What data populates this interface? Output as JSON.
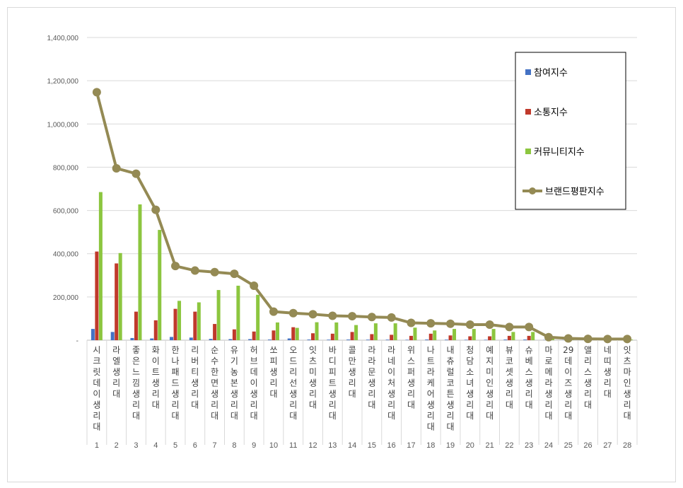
{
  "chart_data": {
    "type": "bar",
    "ylim": [
      0,
      1400000
    ],
    "y_ticks": [
      "-",
      "200,000",
      "400,000",
      "600,000",
      "800,000",
      "1,000,000",
      "1,200,000",
      "1,400,000"
    ],
    "categories": [
      "시크릿데이 생리대",
      "라엘 생리대",
      "좋은느낌 생리대",
      "화이트 생리대",
      "한나패드 생리대",
      "리버티 생리대",
      "순수한면 생리대",
      "유기농본 생리대",
      "허브데이 생리대",
      "쏘피 생리대",
      "오드리선 생리대",
      "잇츠미 생리대",
      "바디피트 생리대",
      "콜만 생리대",
      "라라문 생리대",
      "라네이처 생리대",
      "위스퍼 생리대",
      "나트라케어 생리대",
      "내츄럴코튼 생리대",
      "청담소녀 생리대",
      "예지미인 생리대",
      "뷰코셋 생리대",
      "슈베스 생리대",
      "마로메라 생리대",
      "29데이즈 생리대",
      "앨리스 생리대",
      "네띠 생리대",
      "잇츠마인 생리대"
    ],
    "ranks": [
      "1",
      "2",
      "3",
      "4",
      "5",
      "6",
      "7",
      "8",
      "9",
      "10",
      "11",
      "12",
      "13",
      "14",
      "15",
      "16",
      "17",
      "18",
      "19",
      "20",
      "21",
      "22",
      "23",
      "24",
      "25",
      "26",
      "27",
      "28"
    ],
    "series": [
      {
        "name": "참여지수",
        "type": "bar",
        "color": "#4472c4",
        "values": [
          52000,
          38000,
          10000,
          8000,
          15000,
          12000,
          6000,
          5000,
          5000,
          3000,
          8000,
          3000,
          2500,
          3000,
          2500,
          2500,
          2000,
          3000,
          2500,
          2000,
          2000,
          3000,
          3000,
          1000,
          1000,
          1000,
          500,
          500
        ]
      },
      {
        "name": "소통지수",
        "type": "bar",
        "color": "#c0392b",
        "values": [
          410000,
          355000,
          132000,
          92000,
          145000,
          132000,
          75000,
          50000,
          40000,
          45000,
          60000,
          32000,
          30000,
          38000,
          28000,
          25000,
          20000,
          30000,
          22000,
          18000,
          18000,
          20000,
          20000,
          5000,
          3000,
          2000,
          2000,
          2000
        ]
      },
      {
        "name": "커뮤니티지수",
        "type": "bar",
        "color": "#8cc63f",
        "values": [
          685000,
          403000,
          628000,
          510000,
          182000,
          175000,
          232000,
          252000,
          210000,
          82000,
          57000,
          83000,
          82000,
          70000,
          78000,
          78000,
          58000,
          45000,
          52000,
          52000,
          52000,
          38000,
          38000,
          8000,
          4000,
          3000,
          3000,
          3000
        ]
      },
      {
        "name": "브랜드평판지수",
        "type": "line",
        "color": "#948a54",
        "values": [
          1147000,
          795000,
          770000,
          603000,
          343000,
          322000,
          315000,
          307000,
          252000,
          132000,
          125000,
          120000,
          113000,
          111000,
          107000,
          105000,
          80000,
          78000,
          76000,
          72000,
          72000,
          61000,
          61000,
          14000,
          8000,
          6000,
          5500,
          5500
        ]
      }
    ],
    "legend_position": "top-right",
    "grid": true
  }
}
